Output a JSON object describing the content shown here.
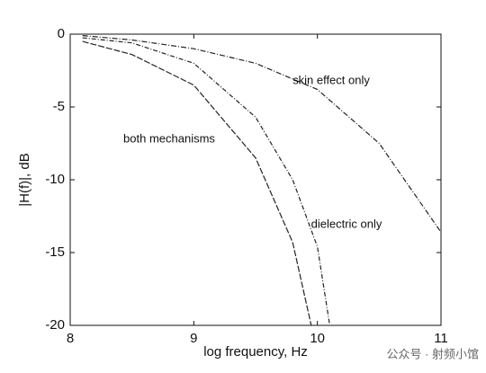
{
  "chart_data": {
    "type": "line",
    "xlabel": "log frequency, Hz",
    "ylabel": "|H(f)|, dB",
    "xlim": [
      8,
      11
    ],
    "ylim": [
      -20,
      0
    ],
    "xticks": [
      8,
      9,
      10,
      11
    ],
    "yticks": [
      0,
      -5,
      -10,
      -15,
      -20
    ],
    "grid": false,
    "series": [
      {
        "name": "skin effect only",
        "color": "#222",
        "x": [
          8.1,
          8.5,
          9,
          9.5,
          10,
          10.5,
          11
        ],
        "values": [
          -0.1,
          -0.4,
          -1.0,
          -2.0,
          -3.8,
          -7.5,
          -13.6
        ]
      },
      {
        "name": "dielectric only",
        "color": "#222",
        "x": [
          8.1,
          8.5,
          9,
          9.5,
          9.8,
          10,
          10.1
        ],
        "values": [
          -0.25,
          -0.6,
          -2.0,
          -5.7,
          -10,
          -14.6,
          -20
        ]
      },
      {
        "name": "both mechanisms",
        "color": "#222",
        "x": [
          8.1,
          8.5,
          9,
          9.5,
          9.8,
          9.95
        ],
        "values": [
          -0.5,
          -1.4,
          -3.5,
          -8.5,
          -14.3,
          -20
        ]
      }
    ],
    "watermark": "公众号 · 射频小馆"
  }
}
